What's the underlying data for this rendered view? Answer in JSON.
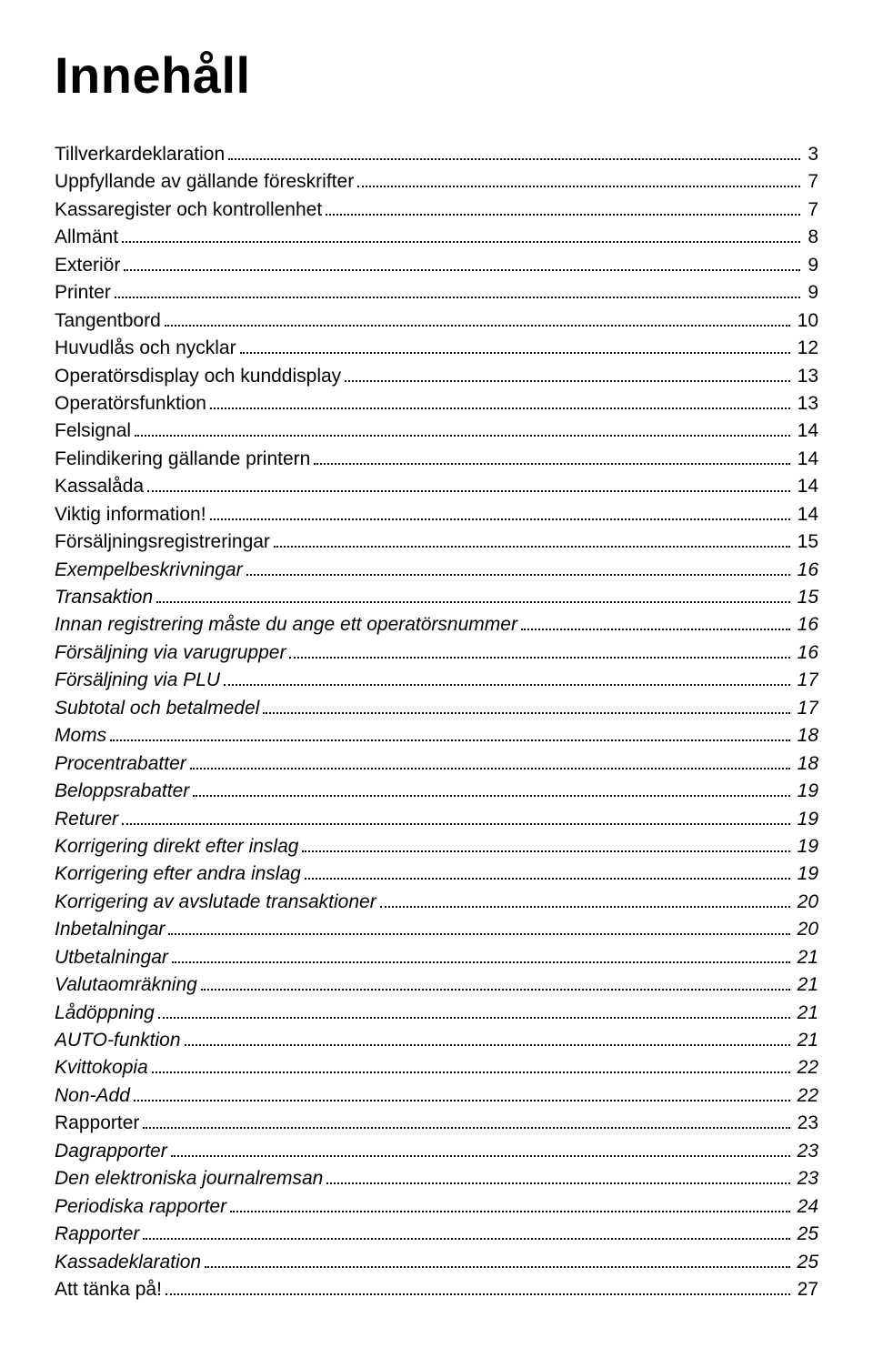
{
  "title": "Innehåll",
  "font": {
    "title_size_pt": 42,
    "entry_size_pt": 16,
    "family": "Arial"
  },
  "colors": {
    "text": "#000000",
    "background": "#ffffff",
    "dots": "#000000"
  },
  "toc": [
    {
      "label": "Tillverkardeklaration",
      "page": "3",
      "italic": false
    },
    {
      "label": "Uppfyllande av gällande föreskrifter",
      "page": "7",
      "italic": false
    },
    {
      "label": "Kassaregister och kontrollenhet",
      "page": "7",
      "italic": false
    },
    {
      "label": "Allmänt",
      "page": "8",
      "italic": false
    },
    {
      "label": "Exteriör",
      "page": "9",
      "italic": false
    },
    {
      "label": "Printer",
      "page": "9",
      "italic": false
    },
    {
      "label": "Tangentbord",
      "page": "10",
      "italic": false
    },
    {
      "label": "Huvudlås och nycklar",
      "page": "12",
      "italic": false
    },
    {
      "label": "Operatörsdisplay och kunddisplay",
      "page": "13",
      "italic": false
    },
    {
      "label": "Operatörsfunktion",
      "page": "13",
      "italic": false
    },
    {
      "label": "Felsignal",
      "page": "14",
      "italic": false
    },
    {
      "label": "Felindikering gällande printern",
      "page": "14",
      "italic": false
    },
    {
      "label": "Kassalåda",
      "page": "14",
      "italic": false
    },
    {
      "label": "Viktig information!",
      "page": "14",
      "italic": false
    },
    {
      "label": "Försäljningsregistreringar",
      "page": "15",
      "italic": false
    },
    {
      "label": "Exempelbeskrivningar",
      "page": "16",
      "italic": true
    },
    {
      "label": "Transaktion",
      "page": "15",
      "italic": true
    },
    {
      "label": "Innan registrering måste du ange ett operatörsnummer",
      "page": "16",
      "italic": true
    },
    {
      "label": "Försäljning via varugrupper",
      "page": "16",
      "italic": true
    },
    {
      "label": "Försäljning via PLU",
      "page": "17",
      "italic": true
    },
    {
      "label": "Subtotal och betalmedel",
      "page": "17",
      "italic": true
    },
    {
      "label": "Moms",
      "page": "18",
      "italic": true
    },
    {
      "label": "Procentrabatter",
      "page": "18",
      "italic": true
    },
    {
      "label": "Beloppsrabatter",
      "page": "19",
      "italic": true
    },
    {
      "label": "Returer",
      "page": "19",
      "italic": true
    },
    {
      "label": "Korrigering direkt efter inslag",
      "page": "19",
      "italic": true
    },
    {
      "label": "Korrigering efter andra inslag",
      "page": "19",
      "italic": true
    },
    {
      "label": "Korrigering av avslutade transaktioner",
      "page": "20",
      "italic": true
    },
    {
      "label": "Inbetalningar",
      "page": "20",
      "italic": true
    },
    {
      "label": "Utbetalningar",
      "page": "21",
      "italic": true
    },
    {
      "label": "Valutaomräkning",
      "page": "21",
      "italic": true
    },
    {
      "label": "Lådöppning",
      "page": "21",
      "italic": true
    },
    {
      "label": "AUTO-funktion",
      "page": "21",
      "italic": true
    },
    {
      "label": "Kvittokopia",
      "page": "22",
      "italic": true
    },
    {
      "label": "Non-Add",
      "page": "22",
      "italic": true
    },
    {
      "label": "Rapporter",
      "page": "23",
      "italic": false
    },
    {
      "label": "Dagrapporter",
      "page": "23",
      "italic": true
    },
    {
      "label": "Den elektroniska journalremsan",
      "page": "23",
      "italic": true
    },
    {
      "label": "Periodiska rapporter",
      "page": "24",
      "italic": true
    },
    {
      "label": "Rapporter",
      "page": "25",
      "italic": true
    },
    {
      "label": "Kassadeklaration",
      "page": "25",
      "italic": true
    },
    {
      "label": "Att tänka på!",
      "page": "27",
      "italic": false
    }
  ]
}
